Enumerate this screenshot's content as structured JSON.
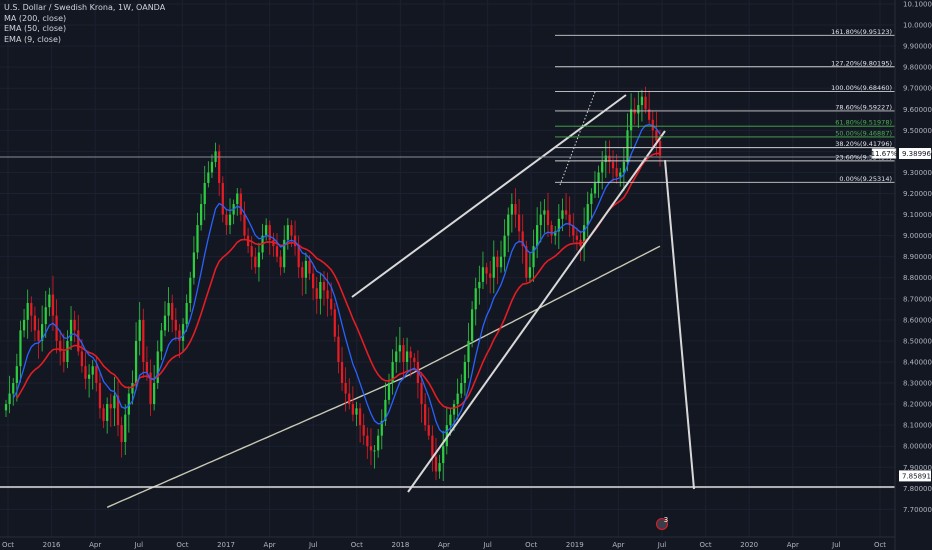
{
  "legend": {
    "symbol": "U.S. Dollar / Swedish Krona, 1W, OANDA",
    "ma200": "MA (200, close)",
    "ema50": "EMA (50, close)",
    "ema9": "EMA (9, close)"
  },
  "colors": {
    "background": "#131722",
    "up": "#2ecc40",
    "down": "#e51c23",
    "ema9": "#2962ff",
    "ema50": "#e51c23",
    "ma200": "#c8c8b4",
    "trendline": "#d8d8d8",
    "fib_white": "#d0d0d0",
    "fib_green": "#4caf50"
  },
  "chart_data": {
    "type": "candlestick",
    "title": "U.S. Dollar / Swedish Krona, 1W, OANDA",
    "ylim": [
      7.64,
      10.1
    ],
    "y_ticks": [
      "10.10000",
      "10.00000",
      "9.90000",
      "9.80000",
      "9.70000",
      "9.60000",
      "9.50000",
      "9.40000",
      "9.30000",
      "9.20000",
      "9.10000",
      "9.00000",
      "8.90000",
      "8.80000",
      "8.70000",
      "8.60000",
      "8.50000",
      "8.40000",
      "8.30000",
      "8.20000",
      "8.10000",
      "8.00000",
      "7.90000",
      "7.80000",
      "7.70000"
    ],
    "x_ticks": [
      "Oct",
      "2016",
      "Apr",
      "Jul",
      "Oct",
      "2017",
      "Apr",
      "Jul",
      "Oct",
      "2018",
      "Apr",
      "Jul",
      "Oct",
      "2019",
      "Apr",
      "Jul",
      "Oct",
      "2020",
      "Apr",
      "Jul",
      "Oct"
    ],
    "x_range": [
      "2015-10",
      "2020-11"
    ],
    "current_price": "9.38996",
    "current_price_tag": "11.67%",
    "target_price": "7.85891",
    "fib_levels": [
      {
        "label": "161.80%(9.95123)",
        "value": 9.95123,
        "color": "white"
      },
      {
        "label": "127.20%(9.80195)",
        "value": 9.80195,
        "color": "white"
      },
      {
        "label": "100.00%(9.68460)",
        "value": 9.6846,
        "color": "white"
      },
      {
        "label": "78.60%(9.59227)",
        "value": 9.59227,
        "color": "white"
      },
      {
        "label": "61.80%(9.51978)",
        "value": 9.51978,
        "color": "green"
      },
      {
        "label": "50.00%(9.46887)",
        "value": 9.46887,
        "color": "green"
      },
      {
        "label": "38.20%(9.41796)",
        "value": 9.41796,
        "color": "white"
      },
      {
        "label": "23.60%(9.35497)",
        "value": 9.35497,
        "color": "white"
      },
      {
        "label": "0.00%(9.25314)",
        "value": 9.25314,
        "color": "white"
      }
    ],
    "closes": [
      8.2,
      8.25,
      8.3,
      8.38,
      8.55,
      8.6,
      8.68,
      8.62,
      8.55,
      8.5,
      8.58,
      8.66,
      8.72,
      8.62,
      8.5,
      8.45,
      8.4,
      8.5,
      8.6,
      8.55,
      8.45,
      8.38,
      8.32,
      8.34,
      8.38,
      8.3,
      8.18,
      8.12,
      8.2,
      8.18,
      8.24,
      8.1,
      8.02,
      8.15,
      8.25,
      8.3,
      8.5,
      8.6,
      8.4,
      8.35,
      8.2,
      8.3,
      8.45,
      8.55,
      8.62,
      8.68,
      8.6,
      8.55,
      8.5,
      8.58,
      8.68,
      8.8,
      8.92,
      9.05,
      9.15,
      9.25,
      9.3,
      9.35,
      9.4,
      9.25,
      9.1,
      9.05,
      9.1,
      9.15,
      9.2,
      9.1,
      9.0,
      8.95,
      8.9,
      8.85,
      8.92,
      9.0,
      9.05,
      8.98,
      8.95,
      8.9,
      8.85,
      8.98,
      9.05,
      9.0,
      8.95,
      8.85,
      8.8,
      8.88,
      8.82,
      8.75,
      8.7,
      8.78,
      8.74,
      8.7,
      8.65,
      8.52,
      8.4,
      8.3,
      8.25,
      8.2,
      8.15,
      8.18,
      8.1,
      8.05,
      8.0,
      7.98,
      7.98,
      8.05,
      8.12,
      8.22,
      8.3,
      8.4,
      8.45,
      8.48,
      8.4,
      8.45,
      8.42,
      8.4,
      8.3,
      8.2,
      8.1,
      8.05,
      7.95,
      7.88,
      7.92,
      8.0,
      8.1,
      8.15,
      8.2,
      8.25,
      8.3,
      8.4,
      8.5,
      8.65,
      8.75,
      8.78,
      8.85,
      8.82,
      8.8,
      8.9,
      8.85,
      8.9,
      9.0,
      9.1,
      9.15,
      9.1,
      9.02,
      8.95,
      8.8,
      8.85,
      8.95,
      9.05,
      9.1,
      9.12,
      9.05,
      9.0,
      9.02,
      9.08,
      9.12,
      9.1,
      9.05,
      9.0,
      8.98,
      8.95,
      9.05,
      9.15,
      9.2,
      9.25,
      9.3,
      9.35,
      9.38,
      9.35,
      9.32,
      9.28,
      9.3,
      9.35,
      9.5,
      9.6,
      9.58,
      9.62,
      9.66,
      9.6,
      9.55,
      9.5,
      9.45,
      9.38
    ]
  },
  "axis_badge": "3"
}
